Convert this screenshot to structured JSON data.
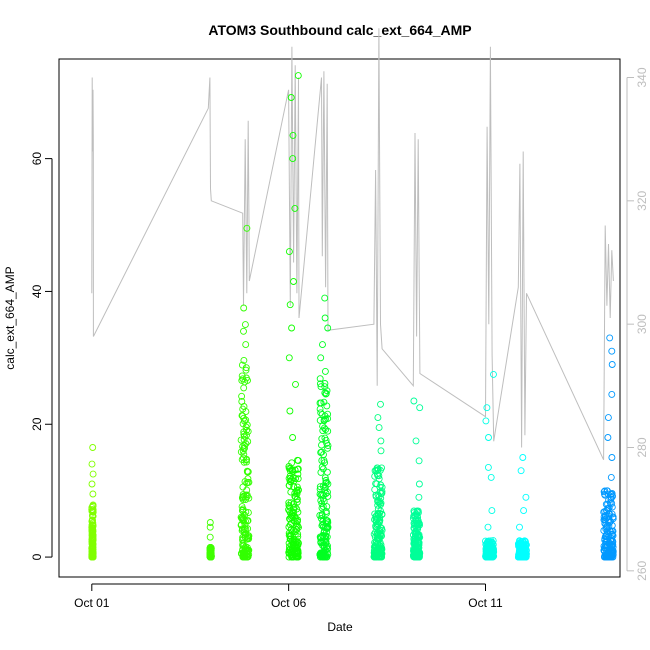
{
  "chart_data": {
    "type": "scatter",
    "title": "ATOM3 Southbound calc_ext_664_AMP",
    "xlabel": "Date",
    "ylabel": "calc_ext_664_AMP",
    "xlim": [
      "2016-09-30T04:00",
      "2016-10-14T10:00"
    ],
    "ylim": [
      -3,
      75
    ],
    "y2lim": [
      259,
      343
    ],
    "x_ticks": [
      {
        "label": "Oct 01",
        "date": "2016-10-01T00:00"
      },
      {
        "label": "Oct 06",
        "date": "2016-10-06T00:00"
      },
      {
        "label": "Oct 11",
        "date": "2016-10-11T00:00"
      }
    ],
    "y_ticks": [
      0,
      20,
      40,
      60
    ],
    "y2_ticks": [
      260,
      280,
      300,
      320,
      340
    ],
    "grid": false,
    "series": [
      {
        "kind": "points",
        "color_scale": "rainbow hue by time (yellow-green to blue)",
        "clusters": [
          {
            "start": "2016-10-01T00:00",
            "end": "2016-10-01T00:50",
            "color": "#80ff00",
            "bulk_max": 8,
            "outliers": [
              9.5,
              11,
              12.5,
              14,
              16.5
            ]
          },
          {
            "start": "2016-10-04T00:00",
            "end": "2016-10-04T00:50",
            "color": "#40ff00",
            "bulk_max": 1.5,
            "outliers": [
              3,
              4.5,
              5.2
            ]
          },
          {
            "start": "2016-10-04T19:00",
            "end": "2016-10-04T23:50",
            "color": "#33ff00",
            "bulk_max": 30,
            "outliers": [
              32,
              34,
              35,
              37.5,
              49.5
            ]
          },
          {
            "start": "2016-10-06T00:00",
            "end": "2016-10-06T06:00",
            "color": "#12ff00",
            "bulk_max": 15,
            "outliers": [
              18,
              22,
              26,
              30,
              34.5,
              38,
              41.5,
              46,
              52.5,
              60,
              63.5,
              69.2,
              72.5
            ]
          },
          {
            "start": "2016-10-06T19:00",
            "end": "2016-10-07T00:00",
            "color": "#00ff22",
            "bulk_max": 28,
            "outliers": [
              30,
              32,
              34.5,
              36,
              39
            ]
          },
          {
            "start": "2016-10-08T04:00",
            "end": "2016-10-08T09:00",
            "color": "#00ff80",
            "bulk_max": 14,
            "outliers": [
              16,
              17.5,
              19.5,
              21,
              23
            ]
          },
          {
            "start": "2016-10-09T04:00",
            "end": "2016-10-09T08:00",
            "color": "#00ff99",
            "bulk_max": 7,
            "outliers": [
              9,
              11,
              14.5,
              17.5,
              22.5,
              23.5
            ]
          },
          {
            "start": "2016-10-11T00:00",
            "end": "2016-10-11T05:00",
            "color": "#00ffe6",
            "bulk_max": 2.5,
            "outliers": [
              4.5,
              7,
              12,
              13.5,
              18,
              20.5,
              22.5,
              27.5
            ]
          },
          {
            "start": "2016-10-11T20:00",
            "end": "2016-10-12T01:00",
            "color": "#00ffff",
            "bulk_max": 2.5,
            "outliers": [
              4.5,
              7,
              9,
              13,
              15
            ]
          },
          {
            "start": "2016-10-14T00:00",
            "end": "2016-10-14T06:00",
            "color": "#0099ff",
            "bulk_max": 10,
            "outliers": [
              12,
              15,
              18,
              21,
              24.5,
              29,
              31,
              33
            ]
          }
        ]
      },
      {
        "kind": "line",
        "axis": "right",
        "color": "#bebebe",
        "points": [
          [
            "2016-10-01T00:00",
            305
          ],
          [
            "2016-10-01T00:15",
            340
          ],
          [
            "2016-10-01T00:30",
            328
          ],
          [
            "2016-10-01T00:45",
            338
          ],
          [
            "2016-10-01T00:55",
            330
          ],
          [
            "2016-10-01T01:00",
            298
          ],
          [
            "2016-10-03T23:00",
            335
          ],
          [
            "2016-10-04T00:00",
            340
          ],
          [
            "2016-10-04T00:20",
            322
          ],
          [
            "2016-10-04T00:50",
            320
          ],
          [
            "2016-10-04T20:00",
            318
          ],
          [
            "2016-10-04T20:30",
            303
          ],
          [
            "2016-10-04T21:30",
            330
          ],
          [
            "2016-10-04T22:30",
            305
          ],
          [
            "2016-10-04T23:20",
            333
          ],
          [
            "2016-10-04T23:50",
            316
          ],
          [
            "2016-10-05T00:00",
            307
          ],
          [
            "2016-10-06T00:00",
            338
          ],
          [
            "2016-10-06T01:00",
            303
          ],
          [
            "2016-10-06T02:00",
            345
          ],
          [
            "2016-10-06T03:00",
            310
          ],
          [
            "2016-10-06T04:00",
            342
          ],
          [
            "2016-10-06T05:00",
            305
          ],
          [
            "2016-10-06T06:00",
            340
          ],
          [
            "2016-10-06T06:20",
            301
          ],
          [
            "2016-10-06T20:00",
            340
          ],
          [
            "2016-10-06T20:30",
            311
          ],
          [
            "2016-10-06T21:30",
            341
          ],
          [
            "2016-10-06T22:30",
            306
          ],
          [
            "2016-10-06T23:30",
            339
          ],
          [
            "2016-10-07T00:00",
            299
          ],
          [
            "2016-10-08T04:00",
            300
          ],
          [
            "2016-10-08T05:00",
            325
          ],
          [
            "2016-10-08T06:00",
            290
          ],
          [
            "2016-10-08T07:00",
            348
          ],
          [
            "2016-10-08T08:00",
            300
          ],
          [
            "2016-10-08T09:00",
            296
          ],
          [
            "2016-10-09T04:00",
            290
          ],
          [
            "2016-10-09T05:00",
            331
          ],
          [
            "2016-10-09T06:00",
            298
          ],
          [
            "2016-10-09T07:00",
            330
          ],
          [
            "2016-10-09T08:00",
            292
          ],
          [
            "2016-10-11T00:00",
            285
          ],
          [
            "2016-10-11T01:00",
            332
          ],
          [
            "2016-10-11T02:00",
            300
          ],
          [
            "2016-10-11T03:00",
            345
          ],
          [
            "2016-10-11T04:00",
            295
          ],
          [
            "2016-10-11T05:00",
            281
          ],
          [
            "2016-10-11T20:00",
            306
          ],
          [
            "2016-10-11T21:00",
            326
          ],
          [
            "2016-10-11T22:00",
            280
          ],
          [
            "2016-10-11T23:00",
            328
          ],
          [
            "2016-10-12T00:00",
            282
          ],
          [
            "2016-10-12T01:00",
            305
          ],
          [
            "2016-10-14T00:00",
            278
          ],
          [
            "2016-10-14T01:00",
            316
          ],
          [
            "2016-10-14T02:00",
            303
          ],
          [
            "2016-10-14T03:00",
            313
          ],
          [
            "2016-10-14T04:00",
            301
          ],
          [
            "2016-10-14T05:00",
            312
          ],
          [
            "2016-10-14T06:00",
            307
          ]
        ]
      }
    ]
  }
}
